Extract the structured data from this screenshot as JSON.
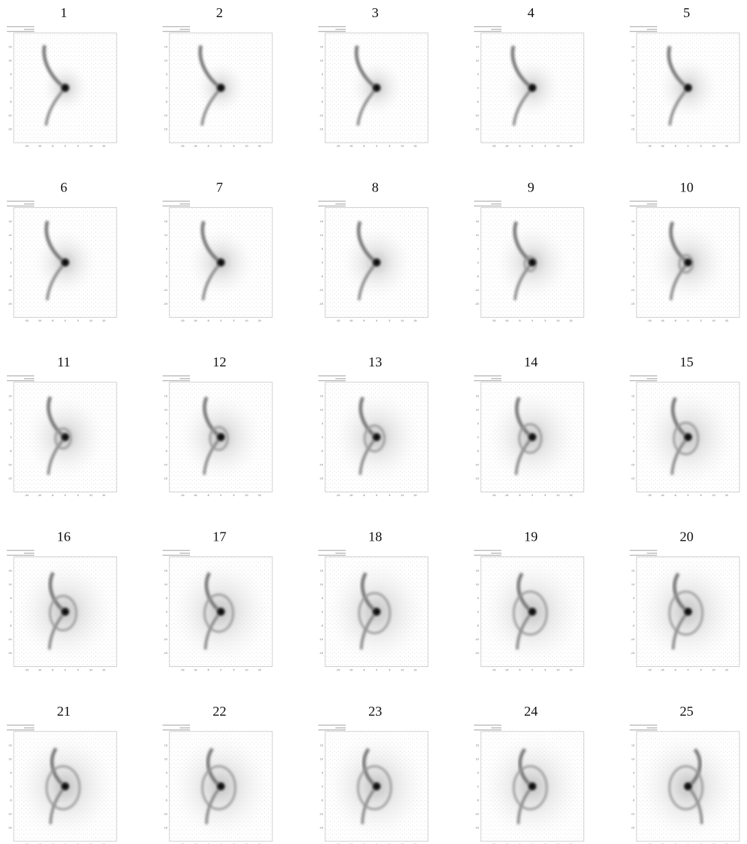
{
  "panels": [
    {
      "label": "1"
    },
    {
      "label": "2"
    },
    {
      "label": "3"
    },
    {
      "label": "4"
    },
    {
      "label": "5"
    },
    {
      "label": "6"
    },
    {
      "label": "7"
    },
    {
      "label": "8"
    },
    {
      "label": "9"
    },
    {
      "label": "10"
    },
    {
      "label": "11"
    },
    {
      "label": "12"
    },
    {
      "label": "13"
    },
    {
      "label": "14"
    },
    {
      "label": "15"
    },
    {
      "label": "16"
    },
    {
      "label": "17"
    },
    {
      "label": "18"
    },
    {
      "label": "19"
    },
    {
      "label": "20"
    },
    {
      "label": "21"
    },
    {
      "label": "22"
    },
    {
      "label": "23"
    },
    {
      "label": "24"
    },
    {
      "label": "25"
    }
  ],
  "axis_ticks": [
    "-15",
    "-10",
    "-5",
    "0",
    "5",
    "10",
    "15"
  ]
}
